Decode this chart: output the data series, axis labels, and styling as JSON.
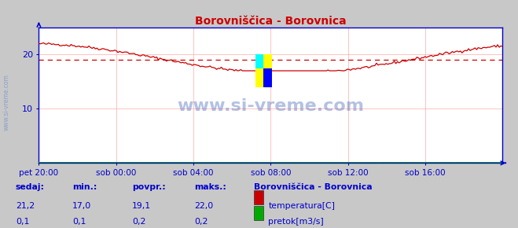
{
  "title": "Borovniščica - Borovnica",
  "bg_color": "#c8c8c8",
  "plot_bg_color": "#ffffff",
  "grid_color": "#ffaaaa",
  "axis_color": "#0000cc",
  "title_color": "#cc0000",
  "label_color": "#0000cc",
  "watermark": "www.si-vreme.com",
  "watermark_color": "#4466bb",
  "xlabel_ticks": [
    "pet 20:00",
    "sob 00:00",
    "sob 04:00",
    "sob 08:00",
    "sob 12:00",
    "sob 16:00"
  ],
  "ylim": [
    0,
    25
  ],
  "yticks": [
    10,
    20
  ],
  "yticklabels": [
    "10",
    "20"
  ],
  "avg_line_y": 19.1,
  "avg_line_color": "#cc0000",
  "temp_color": "#cc0000",
  "flow_color": "#00aa00",
  "temp_min": 17.0,
  "temp_max": 22.0,
  "temp_avg": 19.1,
  "temp_last": 21.2,
  "flow_min": 0.1,
  "flow_max": 0.2,
  "flow_avg": 0.2,
  "flow_last": 0.1,
  "legend_title": "Borovniščica - Borovnica",
  "stat_labels": [
    "sedaj:",
    "min.:",
    "povpr.:",
    "maks.:"
  ],
  "stat_color": "#0000cc",
  "n_points": 288
}
